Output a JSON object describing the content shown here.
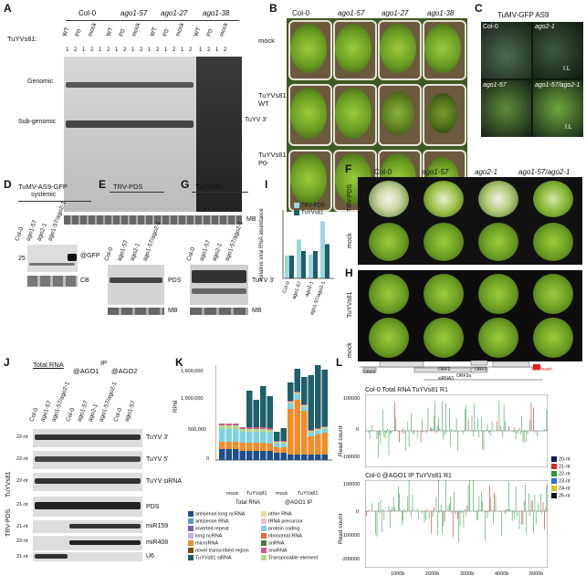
{
  "panels": {
    "A": {
      "label": "A",
      "groups": [
        "Col-0",
        "ago1-57",
        "ago1-27",
        "ago1-38"
      ],
      "row_label": "TuYVs81:",
      "lanes": [
        "WT",
        "P0",
        "mock",
        "WT",
        "P0",
        "mock",
        "WT",
        "P0",
        "mock",
        "WT",
        "P0",
        "mock"
      ],
      "reps": [
        "1",
        "2",
        "1",
        "2",
        "1",
        "2",
        "1",
        "2",
        "1",
        "2",
        "1",
        "2",
        "1",
        "2",
        "1",
        "2",
        "1",
        "2",
        "1",
        "2"
      ],
      "left_labels": [
        "Genomic",
        "Sub-genomic"
      ],
      "right_label": "TuYV 3'",
      "loading": "MB"
    },
    "B": {
      "label": "B",
      "columns": [
        "Col-0",
        "ago1-57",
        "ago1-27",
        "ago1-38"
      ],
      "rows": [
        "mock",
        "TuYVs81 WT",
        "TuYVs81 P0-"
      ]
    },
    "C": {
      "label": "C",
      "title": "TuMV-GFP AS9",
      "quads": [
        "Col-0",
        "ago2-1",
        "ago1-57",
        "ago1-57/ago2-1"
      ],
      "il": "I.L"
    },
    "D": {
      "label": "D",
      "title": "TuMV-AS9-GFP",
      "subtitle": "systemic",
      "lanes": [
        "Col-0",
        "ago1-57",
        "ago2-1",
        "ago1-57/ago2-1"
      ],
      "marker": "25",
      "right1": "@GFP",
      "right2": "CB"
    },
    "E": {
      "label": "E",
      "title": "TRV-PDS",
      "lanes": [
        "Col-0",
        "ago1-57",
        "ago2-1",
        "ago1-57/ago2-1"
      ],
      "right1": "PDS",
      "right2": "MB"
    },
    "G": {
      "label": "G",
      "title": "TuYVs81",
      "lanes": [
        "Col-0",
        "ago1-57",
        "ago2-1",
        "ago1-57/ago2-1"
      ],
      "right1": "TuYV 3'",
      "right2": "MB"
    },
    "I": {
      "label": "I",
      "ylabel": "Relative viral RNA abundance",
      "legend": [
        "TRV-PDS",
        "TuYVs81"
      ]
    },
    "F": {
      "label": "F",
      "columns": [
        "Col-0",
        "ago1-57",
        "ago2-1",
        "ago1-57/ago2-1"
      ],
      "rows": [
        "TRV-PDS",
        "mock"
      ]
    },
    "H": {
      "label": "H",
      "rows": [
        "TuYVs81",
        "mock"
      ]
    },
    "J": {
      "label": "J",
      "group1": "Total RNA",
      "group2": "IP",
      "group2a": "@AGO1",
      "group2b": "@AGO2",
      "lanes": [
        "Col-0",
        "ago1-57",
        "ago1-57/ago2-1",
        "Col-0",
        "ago1-57",
        "ago2-1",
        "ago1-57/ago2-1",
        "Col-0",
        "ago1-57"
      ],
      "sizes": [
        "22-nt",
        "22-nt",
        "22-nt",
        "21-nt",
        "21-nt",
        "22-nt",
        "21-nt"
      ],
      "rows": [
        "TuYV 3'",
        "TuYV 5'",
        "TuYV siRNA",
        "PDS",
        "miR159",
        "miR408",
        "U6"
      ],
      "side1": "TuYVs81",
      "side2": "TRV-PDS"
    },
    "K": {
      "label": "K",
      "ylabel": "RPM",
      "yticks": [
        "1,600,000",
        "1,000,000",
        "500,000",
        "0"
      ],
      "groups": [
        "mock",
        "TuYVs81",
        "mock",
        "TuYVs81"
      ],
      "supergroups": [
        "Total RNA",
        "@AGO1 IP"
      ],
      "legend": [
        "antisense long ncRNA",
        "antisense RNA",
        "inverted repeat",
        "long ncRNA",
        "microRNA",
        "novel transcribed region",
        "TuYVs81 siRNA",
        "other RNA",
        "tRNA precursor",
        "protein coding",
        "ribosomal RNA",
        "snRNA",
        "snoRNA",
        "Transposable element"
      ]
    },
    "L": {
      "label": "L",
      "genes": [
        "ORF0",
        "ORF1",
        "ORF2",
        "ORF3a",
        "ORF3",
        "ORF4",
        "ORF5",
        "siRNA3",
        "3UL insert"
      ],
      "top_title": "Col-0 Total RNA TuYVs81 R1",
      "bottom_title": "Col-0 @AGO1 IP TuYVs81 R1",
      "ylabel": "Read count",
      "top_yticks": [
        "100000",
        "0",
        "-100000"
      ],
      "bottom_yticks": [
        "100000",
        "0",
        "-100000",
        "-200000"
      ],
      "xticks": [
        "1000b",
        "2000b",
        "3000b",
        "4000b",
        "5000b"
      ],
      "legend": [
        "20-nt",
        "21-nt",
        "22-nt",
        "23-nt",
        "24-nt",
        "25-nt"
      ]
    }
  },
  "colors": {
    "trv": "#9fd6dc",
    "tuyv": "#1f5f6b",
    "green": "#4caf50",
    "orange": "#f28c28",
    "blue": "#1e4d8c",
    "cyan": "#7fd0e0"
  },
  "chart_data": [
    {
      "type": "bar",
      "title": "",
      "categories": [
        "Col-0",
        "ago1-57",
        "ago2-1",
        "ago1-57/ago2-1"
      ],
      "series": [
        {
          "name": "TRV-PDS",
          "values": [
            1.0,
            1.7,
            1.05,
            2.5
          ]
        },
        {
          "name": "TuYVs81",
          "values": [
            1.0,
            1.2,
            1.2,
            1.5
          ]
        }
      ],
      "ylabel": "Relative viral RNA abundance",
      "ylim": [
        0,
        3
      ]
    }
  ]
}
